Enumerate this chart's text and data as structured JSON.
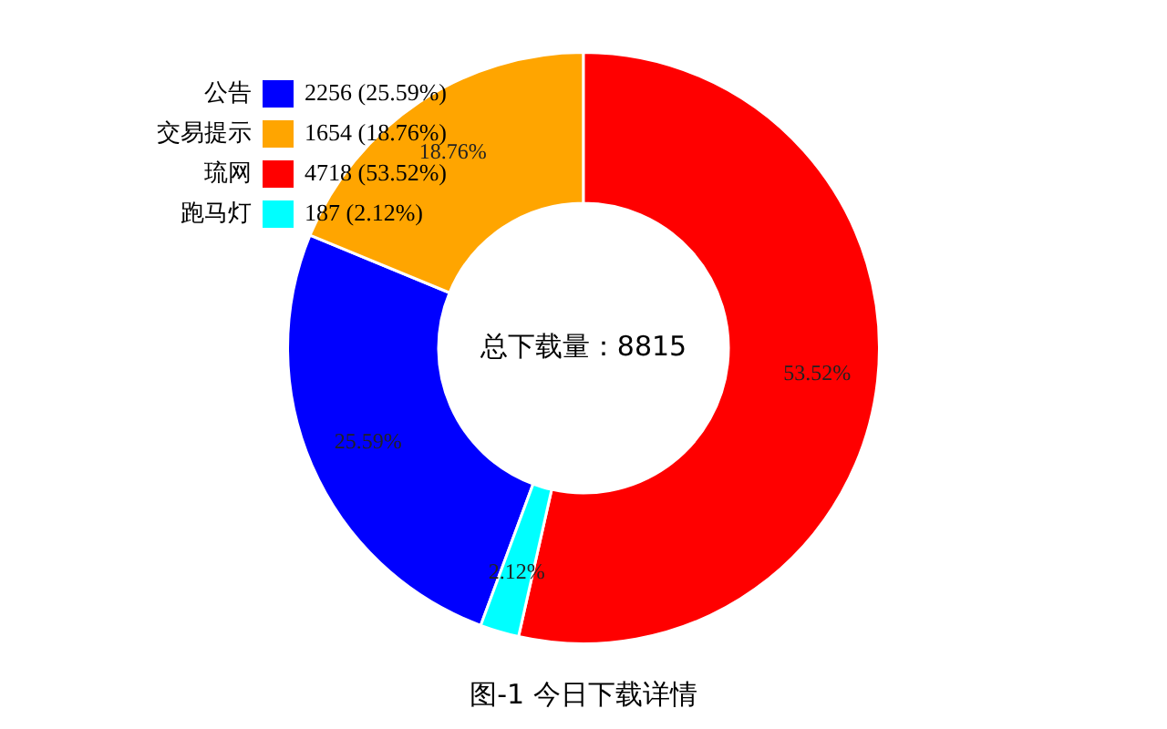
{
  "chart_data": {
    "type": "donut",
    "title": "图-1 今日下载详情",
    "categories": [
      "公告",
      "交易提示",
      "琉网",
      "跑马灯"
    ],
    "values": [
      25.59,
      18.76,
      53.52,
      2.12
    ],
    "value_labels": [
      "25.59%",
      "18.76%",
      "53.52%",
      "2.12%"
    ],
    "colors": [
      "#0000ff",
      "#ffa500",
      "#ff0000",
      "#00ffff"
    ],
    "annotations": [
      "总下载量：8815",
      "2256 (25.59%)",
      "1654 (18.76%)",
      "4718 (53.52%)",
      "187 (2.12%)"
    ],
    "legend": "top left"
  }
}
